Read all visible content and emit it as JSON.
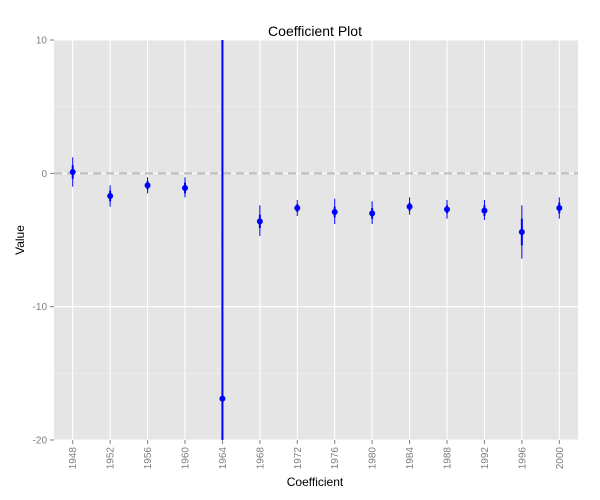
{
  "chart_data": {
    "type": "scatter",
    "title": "Coefficient Plot",
    "xlabel": "Coefficient",
    "ylabel": "Value",
    "categories": [
      "1948",
      "1952",
      "1956",
      "1960",
      "1964",
      "1968",
      "1972",
      "1976",
      "1980",
      "1984",
      "1988",
      "1992",
      "1996",
      "2000"
    ],
    "values": [
      0.1,
      -1.7,
      -0.9,
      -1.1,
      -16.9,
      -3.6,
      -2.6,
      -2.9,
      -3.0,
      -2.5,
      -2.7,
      -2.8,
      -4.4,
      -2.6
    ],
    "inner_low": [
      -0.4,
      -2.1,
      -1.2,
      -1.5,
      -20,
      -4.1,
      -2.9,
      -3.3,
      -3.4,
      -2.8,
      -3.0,
      -3.2,
      -5.4,
      -3.0
    ],
    "inner_high": [
      0.6,
      -1.3,
      -0.6,
      -0.7,
      10,
      -3.1,
      -2.3,
      -2.5,
      -2.6,
      -2.2,
      -2.4,
      -2.4,
      -3.4,
      -2.2
    ],
    "outer_low": [
      -1.0,
      -2.5,
      -1.5,
      -1.8,
      -20,
      -4.7,
      -3.2,
      -3.8,
      -3.8,
      -3.1,
      -3.4,
      -3.5,
      -6.4,
      -3.4
    ],
    "outer_high": [
      1.2,
      -0.9,
      -0.3,
      -0.3,
      10,
      -2.4,
      -2.0,
      -1.9,
      -2.1,
      -1.8,
      -2.0,
      -2.0,
      -2.4,
      -1.8
    ],
    "ylim": [
      -20,
      10
    ],
    "yticks": [
      -20,
      -10,
      0,
      10
    ],
    "reference_line": 0,
    "grid": true,
    "legend": "none",
    "colors": {
      "panel": "#e5e5e5",
      "grid_major": "#ffffff",
      "grid_minor": "#f2f2f2",
      "series": "#0000ff",
      "reference": "#bdbdbd"
    }
  }
}
